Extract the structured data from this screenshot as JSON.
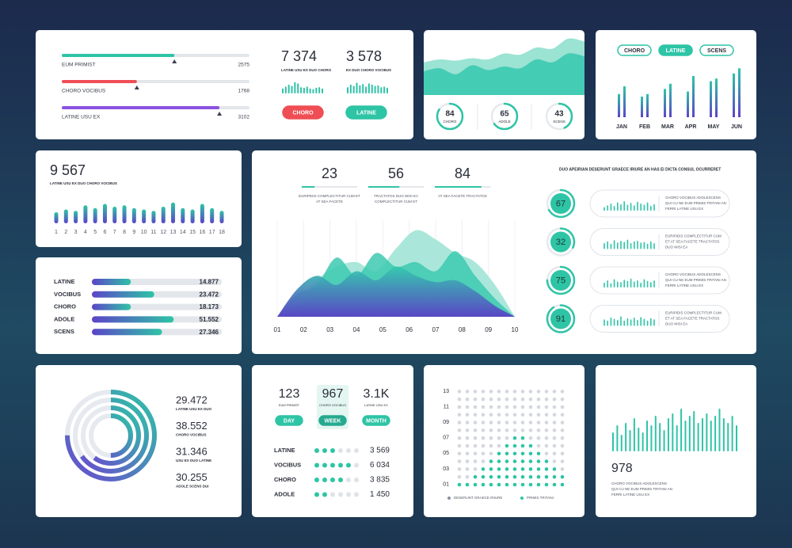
{
  "panel_progress": {
    "scale": [
      0,
      1
    ],
    "items": [
      {
        "label": "EUM PRIMIST",
        "value": "2575",
        "fill": 0.6,
        "marker": 0.6,
        "color": "#2ec4a6"
      },
      {
        "label": "CHORO VOCIBUS",
        "value": "1768",
        "fill": 0.4,
        "marker": 0.4,
        "color": "#ef4e55"
      },
      {
        "label": "LATINE USU EX",
        "value": "3102",
        "fill": 0.84,
        "marker": 0.84,
        "color": "#8a52e0"
      }
    ],
    "ylim": [
      0,
      100
    ],
    "stats": [
      {
        "value": "7 374",
        "caption": "LATINE USU EX DUO CHORO",
        "bars": [
          40,
          55,
          70,
          60,
          90,
          80,
          50,
          45,
          55,
          40,
          35,
          45,
          50,
          40
        ]
      },
      {
        "value": "3 578",
        "caption": "EX DUO CHORO VOCIBUS",
        "bars": [
          50,
          70,
          60,
          85,
          65,
          75,
          55,
          80,
          70,
          60,
          65,
          50,
          55,
          45
        ]
      }
    ],
    "buttons": [
      {
        "label": "CHORO",
        "color": "#ef4e55"
      },
      {
        "label": "LATINE",
        "color": "#2ec4a6"
      }
    ]
  },
  "panel_area": {
    "ylim": [
      0,
      100
    ],
    "scale": [
      0,
      100
    ],
    "back": [
      55,
      60,
      58,
      62,
      60,
      70,
      68,
      80,
      78,
      95,
      90
    ],
    "front": [
      40,
      45,
      35,
      50,
      42,
      48,
      45,
      60,
      55,
      70,
      65
    ],
    "gauges": [
      {
        "value": 84,
        "label": "CHORO"
      },
      {
        "value": 65,
        "label": "ADOLE"
      },
      {
        "value": 43,
        "label": "SCENS"
      }
    ]
  },
  "panel_months": {
    "ylim": [
      0,
      100
    ],
    "buttons": [
      "CHORO",
      "LATINE",
      "SCENS"
    ],
    "months": [
      "JAN",
      "FEB",
      "MAR",
      "APR",
      "MAY",
      "JUN"
    ],
    "series_a": [
      45,
      40,
      55,
      50,
      70,
      85
    ],
    "series_b": [
      60,
      45,
      65,
      80,
      75,
      95
    ]
  },
  "panel_count": {
    "ylim": [
      0,
      100
    ],
    "value": "9 567",
    "caption": "LATINE USU EX DUO CHORO VOCIBUS",
    "categories": [
      "1",
      "2",
      "3",
      "4",
      "5",
      "6",
      "7",
      "8",
      "9",
      "10",
      "11",
      "12",
      "13",
      "14",
      "15",
      "16",
      "17",
      "18"
    ],
    "values": [
      40,
      50,
      45,
      65,
      55,
      70,
      60,
      65,
      55,
      50,
      45,
      60,
      75,
      55,
      50,
      70,
      55,
      45
    ]
  },
  "panel_hbars": {
    "scale": [
      0,
      1
    ],
    "rows": [
      {
        "label": "LATINE",
        "value": "14.877",
        "fill": 0.3
      },
      {
        "label": "VOCIBUS",
        "value": "23.472",
        "fill": 0.48
      },
      {
        "label": "CHORO",
        "value": "18.173",
        "fill": 0.3
      },
      {
        "label": "ADOLE",
        "value": "51.552",
        "fill": 0.63
      },
      {
        "label": "SCENS",
        "value": "27.346",
        "fill": 0.54
      }
    ]
  },
  "panel_main": {
    "scale": [
      0,
      100
    ],
    "ylim": [
      0,
      100
    ],
    "stats": [
      {
        "value": 23,
        "caption": [
          "EURIPIDIS COMPLECTITUR CUM ET",
          "AT SEA FACETE"
        ]
      },
      {
        "value": 56,
        "caption": [
          "TRACTATOS DUO WISI EA",
          "COMPLECTITUR CUM ET"
        ]
      },
      {
        "value": 84,
        "caption": [
          "AT SEA FACETE TRACTATOS"
        ]
      }
    ],
    "x": [
      "01",
      "02",
      "03",
      "04",
      "05",
      "06",
      "07",
      "08",
      "09",
      "10"
    ],
    "layers": [
      {
        "color": "#9be3d3",
        "values": [
          0,
          15,
          40,
          55,
          60,
          50,
          75,
          95,
          85,
          70,
          60,
          35,
          0
        ]
      },
      {
        "color": "#3cc9b0",
        "values": [
          0,
          25,
          35,
          65,
          45,
          70,
          55,
          60,
          50,
          72,
          45,
          20,
          0
        ]
      },
      {
        "color": "url(#gArea)",
        "values": [
          0,
          30,
          45,
          35,
          50,
          40,
          55,
          45,
          38,
          40,
          28,
          12,
          0
        ]
      }
    ],
    "title": "DUO APEIRIAN DESERUNT GRAECE IRIURE AN HAS EI DICTA CONSUL OCURRERET",
    "items": [
      {
        "value": 67,
        "text": [
          "CHORO VOCIBUS ADOLESCENS",
          "QUI CU NE EUM PRIMIS TRITANI AN",
          "FERRI LATINE USU EX"
        ],
        "bars": [
          30,
          45,
          60,
          40,
          70,
          55,
          80,
          50,
          65,
          45,
          75,
          60,
          50,
          70,
          40,
          55
        ]
      },
      {
        "value": 32,
        "text": [
          "EURIPIDIS COMPLECTITUR CUM",
          "ET AT SEA FACETE TRACTATOS",
          "DUO WISI EA"
        ],
        "bars": [
          50,
          65,
          45,
          75,
          55,
          70,
          60,
          80,
          50,
          65,
          70,
          55,
          60,
          45,
          65,
          50
        ]
      },
      {
        "value": 75,
        "text": [
          "CHORO VOCIBUS ADOLESCENS",
          "QUI CU NE EUM PRIMIS TRITANI AN",
          "FERRI LATINE USU EX"
        ],
        "bars": [
          40,
          60,
          35,
          70,
          50,
          45,
          65,
          55,
          75,
          50,
          60,
          40,
          70,
          55,
          45,
          60
        ]
      },
      {
        "value": 91,
        "text": [
          "EURIPIDIS COMPLECTITUR CUM",
          "ET AT SEA FACETE TRACTATOS",
          "DUO WISI EA"
        ],
        "bars": [
          55,
          45,
          70,
          60,
          50,
          80,
          45,
          65,
          55,
          70,
          50,
          75,
          60,
          45,
          65,
          55
        ]
      }
    ]
  },
  "panel_rings": {
    "scale": [
      0,
      1
    ],
    "items": [
      {
        "value": "29.472",
        "caption": "LATINE USU EX DUO",
        "fill": 0.75
      },
      {
        "value": "38.552",
        "caption": "CHORO VOCIBUS",
        "fill": 0.65
      },
      {
        "value": "31.346",
        "caption": "USU EX DUO LATINE",
        "fill": 0.6
      },
      {
        "value": "30.255",
        "caption": "ADOLE SCENS DUI",
        "fill": 0.5
      }
    ]
  },
  "panel_period": {
    "stats": [
      {
        "value": "123",
        "caption": "EUM PRIMIST",
        "button": "DAY"
      },
      {
        "value": "967",
        "caption": "CHORO VOCIBUS",
        "button": "WEEK"
      },
      {
        "value": "3.1K",
        "caption": "LATINE USU EX",
        "button": "MONTH"
      }
    ],
    "dots_total": 6,
    "rows": [
      {
        "label": "LATINE",
        "value": "3 569",
        "dots": 3
      },
      {
        "label": "VOCIBUS",
        "value": "6 034",
        "dots": 5
      },
      {
        "label": "CHORO",
        "value": "3 835",
        "dots": 4
      },
      {
        "label": "ADOLE",
        "value": "1 450",
        "dots": 2
      }
    ]
  },
  "panel_dots": {
    "yticks": [
      "13",
      "11",
      "09",
      "07",
      "05",
      "03",
      "01"
    ],
    "rows": 13,
    "columns": [
      1,
      1,
      2,
      3,
      4,
      5,
      6,
      7,
      7,
      6,
      5,
      4,
      3,
      2
    ],
    "legend": [
      {
        "label": "DESERUNT GRAECE IRIURE",
        "color": "#8a8fa0"
      },
      {
        "label": "PRIMIS TRITANI",
        "color": "#2ec4a6"
      }
    ]
  },
  "panel_total": {
    "ylim": [
      0,
      100
    ],
    "value": "978",
    "caption": [
      "CHORO VOCIBUS ADOLESCENS",
      "QUI CU NE EUM PRIMIS TRITANI AN",
      "FERRI LATINE USU EX"
    ],
    "values": [
      40,
      55,
      35,
      60,
      45,
      70,
      50,
      40,
      65,
      55,
      75,
      60,
      45,
      70,
      80,
      55,
      90,
      65,
      75,
      85,
      60,
      70,
      80,
      65,
      75,
      90,
      70,
      60,
      75,
      55
    ]
  }
}
